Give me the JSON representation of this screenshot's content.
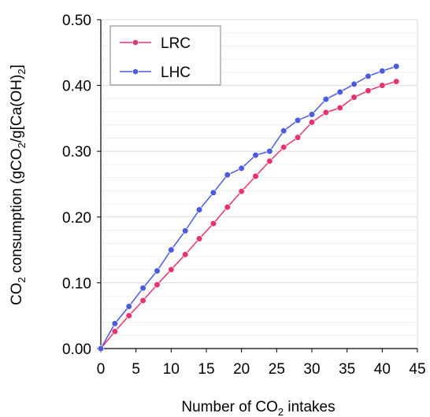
{
  "chart_data": {
    "type": "line",
    "title": "",
    "xlabel": {
      "pre": "Number of CO",
      "sub": "2",
      "post": " intakes"
    },
    "ylabel": {
      "pre": "CO",
      "sub1": "2",
      "mid": " consumption (gCO",
      "sub2": "2",
      "mid2": "/g[Ca(OH)",
      "sub3": "2",
      "post": "]"
    },
    "xlim": [
      0,
      45
    ],
    "ylim": [
      0,
      0.5
    ],
    "x_ticks": [
      "0",
      "5",
      "10",
      "15",
      "20",
      "25",
      "30",
      "35",
      "40",
      "45"
    ],
    "y_ticks": [
      "0.00",
      "0.10",
      "0.20",
      "0.30",
      "0.40",
      "0.50"
    ],
    "grid": "horizontal",
    "legend_position": "top-left",
    "series": [
      {
        "name": "LRC",
        "color": "#e8336f",
        "x": [
          0,
          2,
          4,
          6,
          8,
          10,
          12,
          14,
          16,
          18,
          20,
          22,
          24,
          26,
          28,
          30,
          32,
          34,
          36,
          38,
          40,
          42
        ],
        "y": [
          0.0,
          0.026,
          0.05,
          0.073,
          0.097,
          0.12,
          0.143,
          0.167,
          0.19,
          0.215,
          0.239,
          0.262,
          0.285,
          0.306,
          0.321,
          0.344,
          0.359,
          0.366,
          0.382,
          0.392,
          0.4,
          0.406
        ]
      },
      {
        "name": "LHC",
        "color": "#4a5be0",
        "x": [
          0,
          2,
          4,
          6,
          8,
          10,
          12,
          14,
          16,
          18,
          20,
          22,
          24,
          26,
          28,
          30,
          32,
          34,
          36,
          38,
          40,
          42
        ],
        "y": [
          0.0,
          0.038,
          0.064,
          0.092,
          0.118,
          0.15,
          0.179,
          0.211,
          0.237,
          0.264,
          0.274,
          0.294,
          0.3,
          0.331,
          0.347,
          0.356,
          0.379,
          0.39,
          0.402,
          0.414,
          0.422,
          0.429
        ]
      }
    ]
  }
}
